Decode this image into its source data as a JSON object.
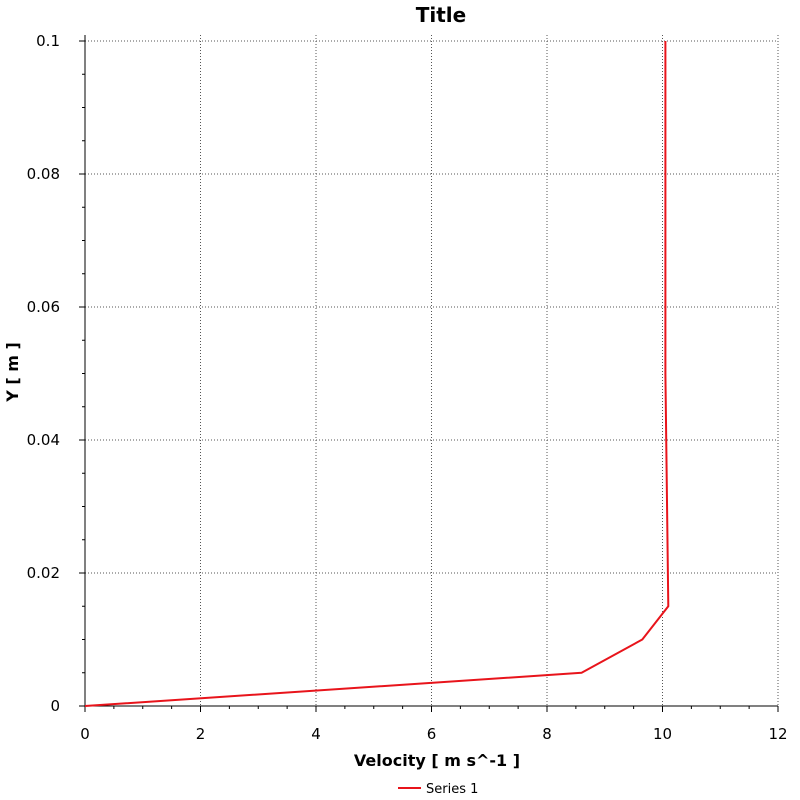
{
  "chart_data": {
    "type": "line",
    "title": "Title",
    "xlabel": "Velocity [ m s^-1 ]",
    "ylabel": "Y [ m ]",
    "xlim": [
      0,
      12
    ],
    "ylim": [
      0,
      0.1
    ],
    "x_ticks": [
      0,
      2,
      4,
      6,
      8,
      10,
      12
    ],
    "y_ticks": [
      0,
      0.02,
      0.04,
      0.06,
      0.08,
      0.1
    ],
    "x_tick_labels": [
      "0",
      "2",
      "4",
      "6",
      "8",
      "10",
      "12"
    ],
    "y_tick_labels": [
      "0",
      "0.02",
      "0.04",
      "0.06",
      "0.08",
      "0.1"
    ],
    "grid": true,
    "legend_position": "bottom-center",
    "series": [
      {
        "name": "Series 1",
        "color": "#e8141b",
        "x": [
          0,
          8.6,
          9.65,
          10.1,
          10.05,
          10.05
        ],
        "y": [
          0,
          0.005,
          0.01,
          0.015,
          0.05,
          0.1
        ]
      }
    ]
  }
}
